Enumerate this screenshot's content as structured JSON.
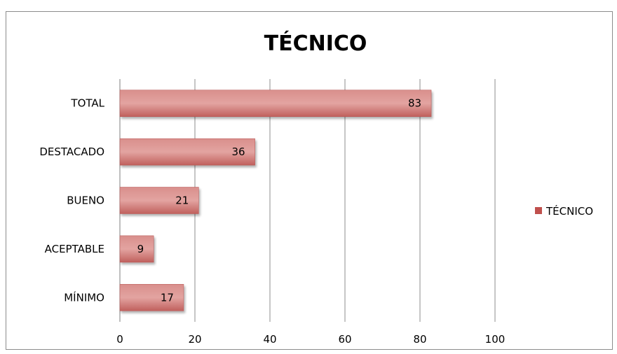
{
  "chart_data": {
    "type": "bar",
    "orientation": "horizontal",
    "title": "TÉCNICO",
    "categories": [
      "TOTAL",
      "DESTACADO",
      "BUENO",
      "ACEPTABLE",
      "MÍNIMO"
    ],
    "series": [
      {
        "name": "TÉCNICO",
        "values": [
          83,
          36,
          21,
          9,
          17
        ],
        "color": "#c0504d"
      }
    ],
    "x_ticks": [
      "0",
      "20",
      "40",
      "60",
      "80",
      "100"
    ],
    "xlim": [
      0,
      100
    ],
    "xlabel": "",
    "ylabel": "",
    "grid": true,
    "legend_position": "right"
  }
}
